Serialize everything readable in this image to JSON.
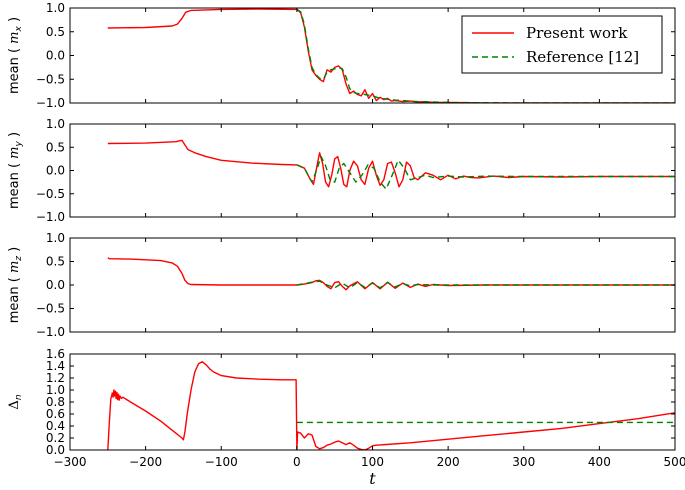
{
  "chart_data": {
    "type": "line",
    "xlabel": "t",
    "xlim": [
      -300,
      500
    ],
    "xticks": [
      -300,
      -200,
      -100,
      0,
      100,
      200,
      300,
      400,
      500
    ],
    "xtick_labels": [
      "−300",
      "−200",
      "−100",
      "0",
      "100",
      "200",
      "300",
      "400",
      "500"
    ],
    "legend": {
      "placement": "top-right of first panel",
      "entries": [
        {
          "label": "Present work",
          "color": "#ff0000",
          "style": "solid"
        },
        {
          "label": "Reference [12]",
          "color": "#008000",
          "style": "dashed"
        }
      ]
    },
    "panels": [
      {
        "ylabel_prefix": "mean ( ",
        "ylabel_var": "m",
        "ylabel_sub": "x",
        "ylabel_suffix": " )",
        "ylim": [
          -1.0,
          1.0
        ],
        "yticks": [
          "1.0",
          "0.5",
          "0.0",
          "−0.5",
          "−1.0"
        ],
        "series": [
          {
            "name": "Present work",
            "color": "#ff0000",
            "dash": "none",
            "x": [
              -250,
              -200,
              -165,
              -158,
              -152,
              -147,
              -140,
              -100,
              -50,
              0,
              5,
              10,
              15,
              20,
              25,
              30,
              35,
              40,
              45,
              50,
              55,
              60,
              65,
              70,
              75,
              80,
              85,
              90,
              95,
              100,
              105,
              110,
              115,
              120,
              125,
              130,
              140,
              150,
              160,
              170,
              180,
              200,
              250,
              300,
              400,
              500
            ],
            "y": [
              0.58,
              0.59,
              0.62,
              0.66,
              0.78,
              0.91,
              0.95,
              0.97,
              0.98,
              0.97,
              0.9,
              0.6,
              0.1,
              -0.3,
              -0.42,
              -0.5,
              -0.55,
              -0.3,
              -0.35,
              -0.25,
              -0.22,
              -0.3,
              -0.6,
              -0.8,
              -0.75,
              -0.82,
              -0.85,
              -0.72,
              -0.9,
              -0.8,
              -0.95,
              -0.88,
              -0.93,
              -0.9,
              -0.96,
              -0.95,
              -0.97,
              -0.96,
              -0.98,
              -0.97,
              -0.99,
              -0.99,
              -1.0,
              -1.0,
              -1.0,
              -1.0
            ]
          },
          {
            "name": "Reference [12]",
            "color": "#008000",
            "dash": "6,4",
            "x": [
              0,
              5,
              10,
              15,
              20,
              25,
              30,
              35,
              40,
              45,
              50,
              55,
              60,
              65,
              70,
              75,
              80,
              90,
              100,
              110,
              120,
              130,
              140,
              160,
              180,
              200,
              300,
              400,
              500
            ],
            "y": [
              0.97,
              0.92,
              0.65,
              0.15,
              -0.25,
              -0.4,
              -0.48,
              -0.5,
              -0.35,
              -0.3,
              -0.28,
              -0.25,
              -0.28,
              -0.45,
              -0.7,
              -0.78,
              -0.8,
              -0.82,
              -0.85,
              -0.9,
              -0.92,
              -0.94,
              -0.95,
              -0.97,
              -0.98,
              -0.99,
              -1.0,
              -1.0,
              -1.0
            ]
          }
        ]
      },
      {
        "ylabel_prefix": "mean ( ",
        "ylabel_var": "m",
        "ylabel_sub": "y",
        "ylabel_suffix": " )",
        "ylim": [
          -1.0,
          1.0
        ],
        "yticks": [
          "1.0",
          "0.5",
          "0.0",
          "−0.5",
          "−1.0"
        ],
        "series": [
          {
            "name": "Present work",
            "color": "#ff0000",
            "dash": "none",
            "x": [
              -250,
              -200,
              -160,
              -152,
              -148,
              -144,
              -135,
              -120,
              -100,
              -60,
              -20,
              0,
              10,
              18,
              22,
              26,
              30,
              34,
              38,
              42,
              46,
              50,
              54,
              58,
              62,
              66,
              70,
              75,
              80,
              85,
              90,
              95,
              100,
              105,
              110,
              115,
              120,
              125,
              130,
              135,
              140,
              145,
              150,
              155,
              160,
              170,
              180,
              190,
              200,
              210,
              220,
              230,
              240,
              260,
              280,
              300,
              350,
              400,
              450,
              500
            ],
            "y": [
              0.58,
              0.59,
              0.62,
              0.65,
              0.55,
              0.45,
              0.38,
              0.3,
              0.22,
              0.16,
              0.13,
              0.12,
              0.05,
              -0.2,
              -0.3,
              0.05,
              0.38,
              0.15,
              -0.25,
              -0.35,
              -0.1,
              0.25,
              0.3,
              0.05,
              -0.3,
              -0.35,
              0.0,
              0.2,
              0.1,
              -0.2,
              -0.3,
              0.05,
              0.2,
              -0.1,
              -0.32,
              -0.2,
              0.15,
              0.18,
              -0.05,
              -0.35,
              -0.2,
              0.18,
              0.1,
              -0.15,
              -0.2,
              -0.05,
              -0.1,
              -0.2,
              -0.1,
              -0.18,
              -0.12,
              -0.15,
              -0.16,
              -0.12,
              -0.15,
              -0.13,
              -0.14,
              -0.13,
              -0.13,
              -0.13
            ]
          },
          {
            "name": "Reference [12]",
            "color": "#008000",
            "dash": "6,4",
            "x": [
              0,
              10,
              20,
              26,
              32,
              38,
              44,
              50,
              56,
              62,
              70,
              78,
              86,
              94,
              102,
              110,
              118,
              126,
              134,
              142,
              150,
              160,
              170,
              180,
              200,
              220,
              250,
              300,
              400,
              500
            ],
            "y": [
              0.12,
              0.05,
              -0.25,
              0.0,
              0.3,
              0.1,
              -0.2,
              -0.25,
              0.05,
              0.15,
              -0.05,
              -0.25,
              -0.1,
              0.12,
              0.05,
              -0.25,
              -0.4,
              -0.1,
              0.22,
              0.05,
              -0.2,
              -0.15,
              -0.1,
              -0.15,
              -0.12,
              -0.14,
              -0.12,
              -0.13,
              -0.13,
              -0.13
            ]
          }
        ]
      },
      {
        "ylabel_prefix": "mean ( ",
        "ylabel_var": "m",
        "ylabel_sub": "z",
        "ylabel_suffix": " )",
        "ylim": [
          -1.0,
          1.0
        ],
        "yticks": [
          "1.0",
          "0.5",
          "0.0",
          "−0.5",
          "−1.0"
        ],
        "series": [
          {
            "name": "Present work",
            "color": "#ff0000",
            "dash": "none",
            "x": [
              -250,
              -248,
              -220,
              -180,
              -165,
              -158,
              -152,
              -148,
              -144,
              -140,
              -100,
              -50,
              0,
              10,
              20,
              25,
              30,
              35,
              40,
              45,
              50,
              55,
              60,
              65,
              70,
              80,
              90,
              100,
              110,
              120,
              130,
              140,
              150,
              160,
              170,
              180,
              200,
              250,
              300,
              400,
              500
            ],
            "y": [
              0.58,
              0.56,
              0.55,
              0.52,
              0.47,
              0.4,
              0.25,
              0.1,
              0.03,
              0.01,
              0.0,
              0.0,
              0.0,
              0.02,
              0.05,
              0.09,
              0.1,
              0.05,
              -0.03,
              -0.08,
              0.05,
              0.07,
              -0.03,
              -0.1,
              -0.02,
              0.07,
              -0.08,
              0.05,
              -0.08,
              0.06,
              -0.07,
              0.04,
              -0.05,
              0.02,
              -0.03,
              0.01,
              -0.01,
              0.0,
              0.0,
              0.0,
              0.0
            ]
          },
          {
            "name": "Reference [12]",
            "color": "#008000",
            "dash": "6,4",
            "x": [
              0,
              10,
              20,
              30,
              40,
              50,
              60,
              70,
              80,
              90,
              100,
              110,
              120,
              130,
              140,
              150,
              160,
              180,
              200,
              300,
              400,
              500
            ],
            "y": [
              0.0,
              0.03,
              0.06,
              0.08,
              0.0,
              -0.06,
              0.04,
              -0.06,
              0.05,
              -0.05,
              0.04,
              -0.06,
              0.05,
              -0.04,
              0.03,
              -0.02,
              0.01,
              0.0,
              0.0,
              0.0,
              0.0,
              0.0
            ]
          }
        ]
      },
      {
        "ylabel_prefix": "",
        "ylabel_var": "Δ",
        "ylabel_sub": "n",
        "ylabel_suffix": "",
        "ylim": [
          0.0,
          1.6
        ],
        "yticks": [
          "1.6",
          "1.4",
          "1.2",
          "1.0",
          "0.8",
          "0.6",
          "0.4",
          "0.2",
          "0.0"
        ],
        "series": [
          {
            "name": "Present work",
            "color": "#ff0000",
            "dash": "none",
            "x": [
              -250,
              -248,
              -246,
              -244,
              -243,
              -242,
              -241,
              -240,
              -239,
              -238,
              -237,
              -236,
              -235,
              -234,
              -232,
              -230,
              -225,
              -220,
              -200,
              -180,
              -160,
              -152,
              -150,
              -148,
              -145,
              -140,
              -135,
              -130,
              -125,
              -120,
              -115,
              -110,
              -100,
              -80,
              -50,
              -20,
              -1,
              0,
              1,
              5,
              10,
              15,
              20,
              25,
              30,
              35,
              40,
              45,
              50,
              55,
              60,
              65,
              70,
              75,
              80,
              85,
              90,
              95,
              100,
              105,
              150,
              200,
              250,
              300,
              350,
              400,
              450,
              480,
              500
            ],
            "y": [
              0.0,
              0.45,
              0.85,
              0.95,
              0.88,
              1.0,
              0.9,
              0.98,
              0.86,
              0.96,
              0.84,
              0.93,
              0.83,
              0.9,
              0.86,
              0.88,
              0.84,
              0.8,
              0.65,
              0.48,
              0.28,
              0.2,
              0.17,
              0.3,
              0.6,
              1.0,
              1.3,
              1.44,
              1.47,
              1.42,
              1.35,
              1.3,
              1.24,
              1.2,
              1.18,
              1.17,
              1.17,
              0.0,
              0.3,
              0.28,
              0.2,
              0.27,
              0.25,
              0.06,
              0.02,
              0.04,
              0.08,
              0.1,
              0.13,
              0.15,
              0.12,
              0.09,
              0.12,
              0.08,
              0.03,
              0.01,
              0.0,
              0.03,
              0.07,
              0.08,
              0.12,
              0.18,
              0.24,
              0.3,
              0.36,
              0.44,
              0.52,
              0.58,
              0.62
            ]
          },
          {
            "name": "Reference [12]",
            "color": "#008000",
            "dash": "6,4",
            "x": [
              0,
              500
            ],
            "y": [
              0.46,
              0.46
            ]
          }
        ]
      }
    ]
  }
}
